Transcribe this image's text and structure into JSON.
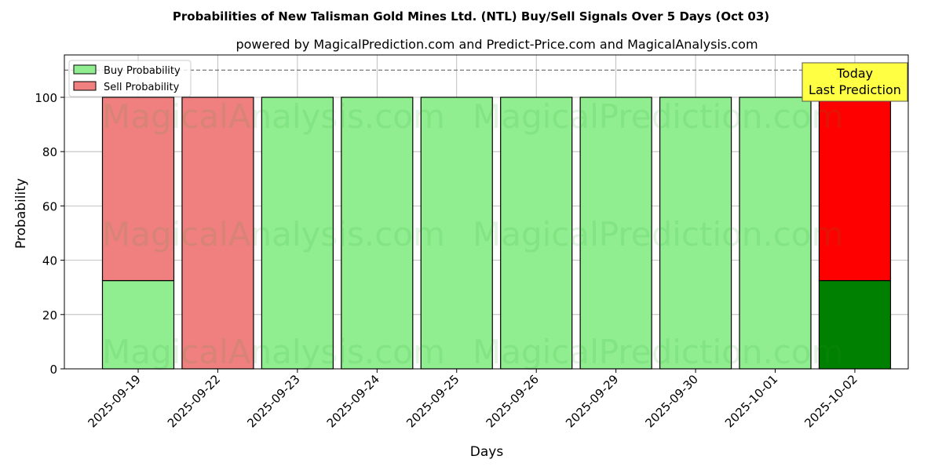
{
  "chart_data": {
    "type": "bar",
    "stacked": true,
    "title": "Probabilities of New Talisman Gold Mines Ltd. (NTL) Buy/Sell Signals Over 5 Days (Oct 03)",
    "subtitle": "powered by MagicalPrediction.com and Predict-Price.com and MagicalAnalysis.com",
    "xlabel": "Days",
    "ylabel": "Probability",
    "ylim": [
      0,
      115.6
    ],
    "yticks": [
      0,
      20,
      40,
      60,
      80,
      100
    ],
    "grid": true,
    "legend_position": "top-left",
    "categories": [
      "2025-09-19",
      "2025-09-22",
      "2025-09-23",
      "2025-09-24",
      "2025-09-25",
      "2025-09-26",
      "2025-09-29",
      "2025-09-30",
      "2025-10-01",
      "2025-10-02"
    ],
    "series": [
      {
        "name": "Buy Probability",
        "color": "#90ee90",
        "values": [
          32.5,
          0,
          100,
          100,
          100,
          100,
          100,
          100,
          100,
          32.5
        ]
      },
      {
        "name": "Sell Probability",
        "color": "#f08080",
        "values": [
          67.5,
          100,
          0,
          0,
          0,
          0,
          0,
          0,
          0,
          67.5
        ]
      }
    ],
    "highlight": {
      "buy_color": "#008000",
      "sell_color": "#ff0000"
    },
    "reference_line": 110,
    "annotation": {
      "line1": "Today",
      "line2": "Last Prediction"
    },
    "watermarks": [
      "MagicalAnalysis.com",
      "MagicalPrediction.com"
    ]
  }
}
